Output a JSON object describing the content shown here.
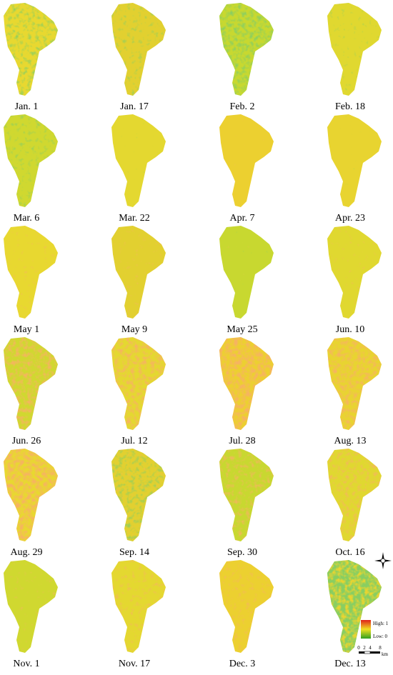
{
  "panels": [
    {
      "label": "Jan. 1"
    },
    {
      "label": "Jan. 17"
    },
    {
      "label": "Feb. 2"
    },
    {
      "label": "Feb. 18"
    },
    {
      "label": "Mar. 6"
    },
    {
      "label": "Mar. 22"
    },
    {
      "label": "Apr. 7"
    },
    {
      "label": "Apr. 23"
    },
    {
      "label": "May 1"
    },
    {
      "label": "May 9"
    },
    {
      "label": "May 25"
    },
    {
      "label": "Jun. 10"
    },
    {
      "label": "Jun. 26"
    },
    {
      "label": "Jul. 12"
    },
    {
      "label": "Jul. 28"
    },
    {
      "label": "Aug. 13"
    },
    {
      "label": "Aug. 29"
    },
    {
      "label": "Sep. 14"
    },
    {
      "label": "Sep. 30"
    },
    {
      "label": "Oct. 16"
    },
    {
      "label": "Nov. 1"
    },
    {
      "label": "Nov. 17"
    },
    {
      "label": "Dec. 3"
    },
    {
      "label": "Dec. 13"
    }
  ],
  "legend": {
    "high": "High: 1",
    "low": "Low: 0"
  },
  "scale_bar": {
    "ticks": [
      "0",
      "2",
      "4",
      "8"
    ],
    "unit": "km"
  }
}
